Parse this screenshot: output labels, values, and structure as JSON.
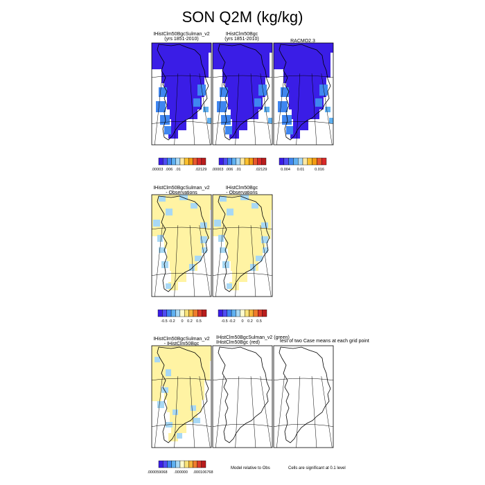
{
  "figure": {
    "title": "SON Q2M (kg/kg)",
    "note_model_relative": "Model relative to Obs",
    "note_cells_significant": "Cells are significant at 0.1 level",
    "note_ttest_fragment": "test of two Case means at each grid point"
  },
  "colors": {
    "abs_palette": [
      "#3a1de6",
      "#4f4cf2",
      "#3f86f0",
      "#5fb0f0",
      "#a8d8f4",
      "#ffe9a0",
      "#fbc02d",
      "#f39c12",
      "#e8582e",
      "#d92a2a",
      "#b81d1d"
    ],
    "bias_palette": [
      "#3a1de6",
      "#4f4cf2",
      "#3f86f0",
      "#5fb0f0",
      "#a8d8f4",
      "#fffccf",
      "#f7e27a",
      "#f6b63a",
      "#ef7d2c",
      "#dc3a2a",
      "#b81d1d"
    ],
    "deep_blue": "#3a1de6",
    "light_blue": "#a8d8f4",
    "pale_yellow": "#fff3a3"
  },
  "chart_data": [
    {
      "type": "heatmap",
      "title": "IHistClm50BgcSulman_v2",
      "subtitle": "(yrs 1851-2010)",
      "field": "Q2M",
      "season": "SON",
      "units": "kg/kg",
      "colorbar_labels": [
        ".00003",
        ".006",
        ".01",
        ".02129"
      ],
      "dominant_color": "deep_blue"
    },
    {
      "type": "heatmap",
      "title": "IHistClm50Bgc",
      "subtitle": "(yrs 1851-2010)",
      "field": "Q2M",
      "season": "SON",
      "units": "kg/kg",
      "colorbar_labels": [
        ".00003",
        ".006",
        ".01",
        ".02129"
      ],
      "dominant_color": "deep_blue"
    },
    {
      "type": "heatmap",
      "title": "RACMO2.3",
      "subtitle": "",
      "field": "Q2M",
      "season": "SON",
      "units": "kg/kg",
      "colorbar_labels": [
        "0.004",
        "0.01",
        "0.016"
      ],
      "dominant_color": "deep_blue"
    },
    {
      "type": "heatmap",
      "title": "IHistClm50BgcSulman_v2",
      "subtitle": "- Observations",
      "field": "Q2M bias",
      "season": "SON",
      "colorbar_labels": [
        "-0.5",
        "-0.2",
        "0",
        "0.2",
        "0.5"
      ],
      "dominant_color": "pale_yellow"
    },
    {
      "type": "heatmap",
      "title": "IHistClm50Bgc",
      "subtitle": "- Observations",
      "field": "Q2M bias",
      "season": "SON",
      "colorbar_labels": [
        "-0.5",
        "-0.2",
        "0",
        "0.2",
        "0.5"
      ],
      "dominant_color": "pale_yellow"
    },
    {
      "type": "heatmap",
      "title": "IHistClm50BgcSulman_v2",
      "subtitle": "- IHistClm50Bgc",
      "field": "Q2M difference",
      "season": "SON",
      "colorbar_labels": [
        ".000059068",
        ".000000",
        ".000106768"
      ],
      "dominant_color": "pale_yellow"
    },
    {
      "type": "heatmap",
      "title": "IHistClm50BgcSulman_v2 (green)",
      "subtitle": "IHistClm50Bgc (red)",
      "field": "significance",
      "season": "SON",
      "colorbar_labels": []
    },
    {
      "type": "heatmap",
      "title": "",
      "subtitle": "",
      "field": "significance",
      "season": "SON",
      "colorbar_labels": []
    }
  ]
}
